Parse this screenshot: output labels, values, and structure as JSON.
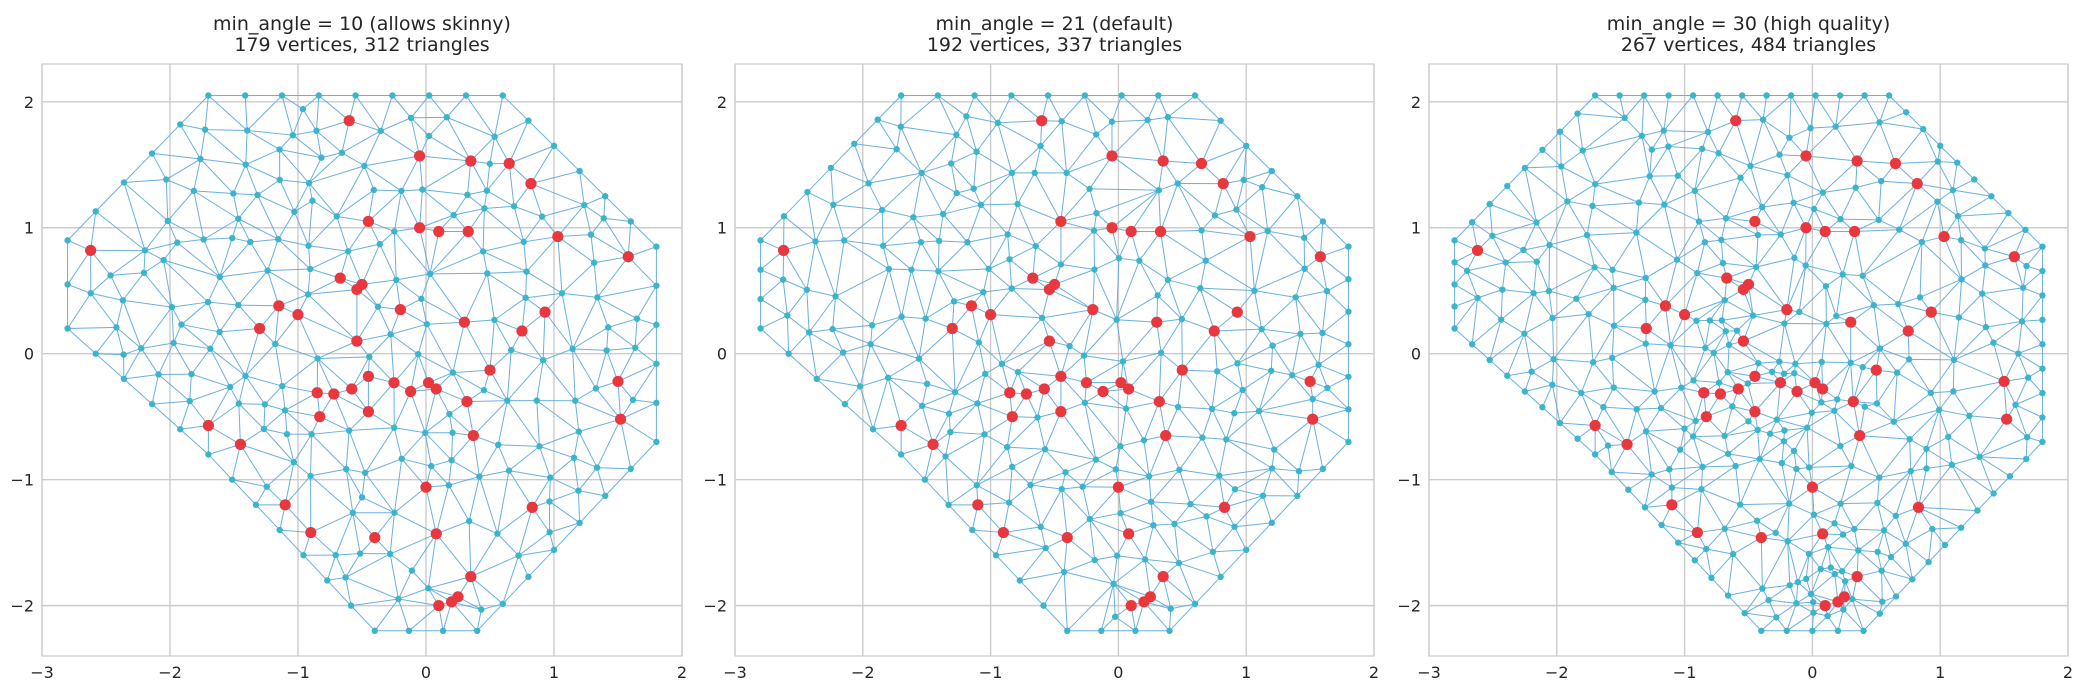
{
  "figure": {
    "grid": true,
    "colors": {
      "edge": "#5aa7dd",
      "vertex": "#3bb5cc",
      "input_point": "#e8383d",
      "grid": "#cccccc",
      "text": "#262626"
    }
  },
  "chart_data": [
    {
      "type": "scatter",
      "title_line1": "min_angle = 10 (allows skinny)",
      "title_line2": "179 vertices, 312 triangles",
      "xlim": [
        -3,
        2
      ],
      "ylim": [
        -2.4,
        2.3
      ],
      "xticks": [
        -3,
        -2,
        -1,
        0,
        1,
        2
      ],
      "yticks": [
        -2,
        -1,
        0,
        1,
        2
      ],
      "xtick_labels": [
        "−3",
        "−2",
        "−1",
        "0",
        "1",
        "2"
      ],
      "ytick_labels": [
        "−2",
        "−1",
        "0",
        "1",
        "2"
      ],
      "boundary": [
        [
          -1.7,
          2.05
        ],
        [
          0.6,
          2.05
        ],
        [
          1.8,
          0.85
        ],
        [
          1.8,
          -0.7
        ],
        [
          0.4,
          -2.2
        ],
        [
          -0.4,
          -2.2
        ],
        [
          -1.7,
          -0.8
        ],
        [
          -2.8,
          0.2
        ],
        [
          -2.8,
          0.9
        ]
      ],
      "input_points": [
        [
          -0.6,
          1.85
        ],
        [
          -0.05,
          1.57
        ],
        [
          0.35,
          1.53
        ],
        [
          0.65,
          1.51
        ],
        [
          0.82,
          1.35
        ],
        [
          -0.45,
          1.05
        ],
        [
          -0.05,
          1.0
        ],
        [
          0.1,
          0.97
        ],
        [
          0.33,
          0.97
        ],
        [
          1.03,
          0.93
        ],
        [
          -2.62,
          0.82
        ],
        [
          1.58,
          0.77
        ],
        [
          -0.67,
          0.6
        ],
        [
          -0.5,
          0.55
        ],
        [
          -0.54,
          0.51
        ],
        [
          -1.15,
          0.38
        ],
        [
          -1.0,
          0.31
        ],
        [
          -0.2,
          0.35
        ],
        [
          0.3,
          0.25
        ],
        [
          0.93,
          0.33
        ],
        [
          -1.3,
          0.2
        ],
        [
          0.75,
          0.18
        ],
        [
          -0.54,
          0.1
        ],
        [
          -0.45,
          -0.18
        ],
        [
          -0.85,
          -0.31
        ],
        [
          -0.72,
          -0.32
        ],
        [
          -0.58,
          -0.28
        ],
        [
          -0.25,
          -0.23
        ],
        [
          -0.12,
          -0.3
        ],
        [
          0.02,
          -0.23
        ],
        [
          0.08,
          -0.28
        ],
        [
          0.5,
          -0.13
        ],
        [
          0.32,
          -0.38
        ],
        [
          1.5,
          -0.22
        ],
        [
          -0.83,
          -0.5
        ],
        [
          -0.45,
          -0.46
        ],
        [
          -1.7,
          -0.57
        ],
        [
          -1.45,
          -0.72
        ],
        [
          0.37,
          -0.65
        ],
        [
          1.52,
          -0.52
        ],
        [
          0.0,
          -1.06
        ],
        [
          -1.1,
          -1.2
        ],
        [
          0.83,
          -1.22
        ],
        [
          -0.9,
          -1.42
        ],
        [
          -0.4,
          -1.46
        ],
        [
          0.08,
          -1.43
        ],
        [
          0.35,
          -1.77
        ],
        [
          0.25,
          -1.93
        ],
        [
          0.2,
          -1.97
        ],
        [
          0.1,
          -2.0
        ]
      ]
    },
    {
      "type": "scatter",
      "title_line1": "min_angle = 21 (default)",
      "title_line2": "192 vertices, 337 triangles",
      "xlim": [
        -3,
        2
      ],
      "ylim": [
        -2.4,
        2.3
      ],
      "xticks": [
        -3,
        -2,
        -1,
        0,
        1,
        2
      ],
      "yticks": [
        -2,
        -1,
        0,
        1,
        2
      ],
      "xtick_labels": [
        "−3",
        "−2",
        "−1",
        "0",
        "1",
        "2"
      ],
      "ytick_labels": [
        "−2",
        "−1",
        "0",
        "1",
        "2"
      ],
      "boundary": [
        [
          -1.7,
          2.05
        ],
        [
          0.6,
          2.05
        ],
        [
          1.8,
          0.85
        ],
        [
          1.8,
          -0.7
        ],
        [
          0.4,
          -2.2
        ],
        [
          -0.4,
          -2.2
        ],
        [
          -1.7,
          -0.8
        ],
        [
          -2.8,
          0.2
        ],
        [
          -2.8,
          0.9
        ]
      ],
      "input_points": [
        [
          -0.6,
          1.85
        ],
        [
          -0.05,
          1.57
        ],
        [
          0.35,
          1.53
        ],
        [
          0.65,
          1.51
        ],
        [
          0.82,
          1.35
        ],
        [
          -0.45,
          1.05
        ],
        [
          -0.05,
          1.0
        ],
        [
          0.1,
          0.97
        ],
        [
          0.33,
          0.97
        ],
        [
          1.03,
          0.93
        ],
        [
          -2.62,
          0.82
        ],
        [
          1.58,
          0.77
        ],
        [
          -0.67,
          0.6
        ],
        [
          -0.5,
          0.55
        ],
        [
          -0.54,
          0.51
        ],
        [
          -1.15,
          0.38
        ],
        [
          -1.0,
          0.31
        ],
        [
          -0.2,
          0.35
        ],
        [
          0.3,
          0.25
        ],
        [
          0.93,
          0.33
        ],
        [
          -1.3,
          0.2
        ],
        [
          0.75,
          0.18
        ],
        [
          -0.54,
          0.1
        ],
        [
          -0.45,
          -0.18
        ],
        [
          -0.85,
          -0.31
        ],
        [
          -0.72,
          -0.32
        ],
        [
          -0.58,
          -0.28
        ],
        [
          -0.25,
          -0.23
        ],
        [
          -0.12,
          -0.3
        ],
        [
          0.02,
          -0.23
        ],
        [
          0.08,
          -0.28
        ],
        [
          0.5,
          -0.13
        ],
        [
          0.32,
          -0.38
        ],
        [
          1.5,
          -0.22
        ],
        [
          -0.83,
          -0.5
        ],
        [
          -0.45,
          -0.46
        ],
        [
          -1.7,
          -0.57
        ],
        [
          -1.45,
          -0.72
        ],
        [
          0.37,
          -0.65
        ],
        [
          1.52,
          -0.52
        ],
        [
          0.0,
          -1.06
        ],
        [
          -1.1,
          -1.2
        ],
        [
          0.83,
          -1.22
        ],
        [
          -0.9,
          -1.42
        ],
        [
          -0.4,
          -1.46
        ],
        [
          0.08,
          -1.43
        ],
        [
          0.35,
          -1.77
        ],
        [
          0.25,
          -1.93
        ],
        [
          0.2,
          -1.97
        ],
        [
          0.1,
          -2.0
        ]
      ]
    },
    {
      "type": "scatter",
      "title_line1": "min_angle = 30 (high quality)",
      "title_line2": "267 vertices, 484 triangles",
      "xlim": [
        -3,
        2
      ],
      "ylim": [
        -2.4,
        2.3
      ],
      "xticks": [
        -3,
        -2,
        -1,
        0,
        1,
        2
      ],
      "yticks": [
        -2,
        -1,
        0,
        1,
        2
      ],
      "xtick_labels": [
        "−3",
        "−2",
        "−1",
        "0",
        "1",
        "2"
      ],
      "ytick_labels": [
        "−2",
        "−1",
        "0",
        "1",
        "2"
      ],
      "boundary": [
        [
          -1.7,
          2.05
        ],
        [
          0.6,
          2.05
        ],
        [
          1.8,
          0.85
        ],
        [
          1.8,
          -0.7
        ],
        [
          0.4,
          -2.2
        ],
        [
          -0.4,
          -2.2
        ],
        [
          -1.7,
          -0.8
        ],
        [
          -2.8,
          0.2
        ],
        [
          -2.8,
          0.9
        ]
      ],
      "input_points": [
        [
          -0.6,
          1.85
        ],
        [
          -0.05,
          1.57
        ],
        [
          0.35,
          1.53
        ],
        [
          0.65,
          1.51
        ],
        [
          0.82,
          1.35
        ],
        [
          -0.45,
          1.05
        ],
        [
          -0.05,
          1.0
        ],
        [
          0.1,
          0.97
        ],
        [
          0.33,
          0.97
        ],
        [
          1.03,
          0.93
        ],
        [
          -2.62,
          0.82
        ],
        [
          1.58,
          0.77
        ],
        [
          -0.67,
          0.6
        ],
        [
          -0.5,
          0.55
        ],
        [
          -0.54,
          0.51
        ],
        [
          -1.15,
          0.38
        ],
        [
          -1.0,
          0.31
        ],
        [
          -0.2,
          0.35
        ],
        [
          0.3,
          0.25
        ],
        [
          0.93,
          0.33
        ],
        [
          -1.3,
          0.2
        ],
        [
          0.75,
          0.18
        ],
        [
          -0.54,
          0.1
        ],
        [
          -0.45,
          -0.18
        ],
        [
          -0.85,
          -0.31
        ],
        [
          -0.72,
          -0.32
        ],
        [
          -0.58,
          -0.28
        ],
        [
          -0.25,
          -0.23
        ],
        [
          -0.12,
          -0.3
        ],
        [
          0.02,
          -0.23
        ],
        [
          0.08,
          -0.28
        ],
        [
          0.5,
          -0.13
        ],
        [
          0.32,
          -0.38
        ],
        [
          1.5,
          -0.22
        ],
        [
          -0.83,
          -0.5
        ],
        [
          -0.45,
          -0.46
        ],
        [
          -1.7,
          -0.57
        ],
        [
          -1.45,
          -0.72
        ],
        [
          0.37,
          -0.65
        ],
        [
          1.52,
          -0.52
        ],
        [
          0.0,
          -1.06
        ],
        [
          -1.1,
          -1.2
        ],
        [
          0.83,
          -1.22
        ],
        [
          -0.9,
          -1.42
        ],
        [
          -0.4,
          -1.46
        ],
        [
          0.08,
          -1.43
        ],
        [
          0.35,
          -1.77
        ],
        [
          0.25,
          -1.93
        ],
        [
          0.2,
          -1.97
        ],
        [
          0.1,
          -2.0
        ]
      ]
    }
  ]
}
